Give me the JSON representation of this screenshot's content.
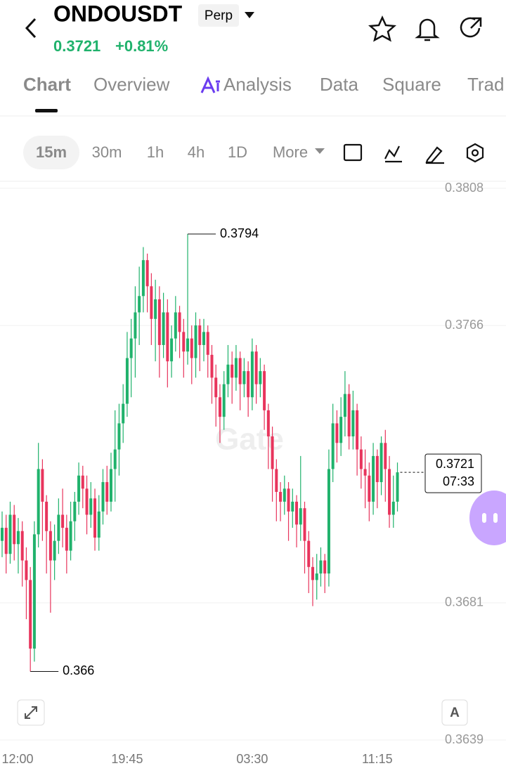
{
  "header": {
    "symbol": "ONDOUSDT",
    "badge": "Perp",
    "price": "0.3721",
    "change": "+0.81%"
  },
  "tabs": [
    "Chart",
    "Overview",
    "Analysis",
    "Data",
    "Square",
    "Trad"
  ],
  "intervals": [
    "15m",
    "30m",
    "1h",
    "4h",
    "1D",
    "More"
  ],
  "watermark": "Gate",
  "auto_button": "A",
  "chart_data": {
    "type": "candlestick",
    "categories": [
      "12:00",
      null,
      null,
      null,
      null,
      null,
      null,
      null,
      null,
      null,
      null,
      null,
      null,
      null,
      null,
      null,
      null,
      null,
      null,
      null,
      null,
      null,
      null,
      null,
      null,
      null,
      null,
      null,
      null,
      null,
      null,
      "19:45",
      null,
      null,
      null,
      null,
      null,
      null,
      null,
      null,
      null,
      null,
      null,
      null,
      null,
      null,
      null,
      null,
      null,
      null,
      null,
      null,
      null,
      null,
      null,
      null,
      null,
      null,
      null,
      null,
      null,
      null,
      "03:30",
      null,
      null,
      null,
      null,
      null,
      null,
      null,
      null,
      null,
      null,
      null,
      null,
      null,
      null,
      null,
      null,
      null,
      null,
      null,
      null,
      null,
      null,
      null,
      null,
      null,
      null,
      null,
      null,
      null,
      null,
      "11:15",
      null,
      null,
      null,
      null,
      null
    ],
    "open": [
      0.37,
      0.3704,
      0.3696,
      0.3708,
      0.3699,
      0.3703,
      0.3694,
      0.3688,
      0.3667,
      0.3702,
      0.3722,
      0.3712,
      0.3703,
      0.3694,
      0.37,
      0.3708,
      0.3704,
      0.3697,
      0.3706,
      0.3712,
      0.372,
      0.3716,
      0.3708,
      0.3713,
      0.3701,
      0.3709,
      0.3718,
      0.3712,
      0.3722,
      0.3728,
      0.3736,
      0.3742,
      0.3756,
      0.3762,
      0.377,
      0.3775,
      0.3786,
      0.3778,
      0.3768,
      0.3774,
      0.376,
      0.377,
      0.3755,
      0.3762,
      0.377,
      0.3764,
      0.3758,
      0.3762,
      0.3756,
      0.3766,
      0.376,
      0.3764,
      0.3757,
      0.375,
      0.3744,
      0.3738,
      0.3748,
      0.3754,
      0.375,
      0.3756,
      0.3748,
      0.3752,
      0.3744,
      0.3758,
      0.3748,
      0.3752,
      0.374,
      0.3732,
      0.3722,
      0.3715,
      0.3712,
      0.3716,
      0.3709,
      0.3712,
      0.3705,
      0.371,
      0.37,
      0.3692,
      0.3688,
      0.369,
      0.3694,
      0.369,
      0.3722,
      0.3736,
      0.373,
      0.3738,
      0.3745,
      0.3732,
      0.374,
      0.3728,
      0.3722,
      0.372,
      0.3712,
      0.3726,
      0.3718,
      0.373,
      0.3722,
      0.3708,
      0.3712
    ],
    "high": [
      0.3709,
      0.3708,
      0.3712,
      0.3711,
      0.3707,
      0.3706,
      0.3698,
      0.3692,
      0.3706,
      0.373,
      0.3725,
      0.3714,
      0.3706,
      0.3705,
      0.3713,
      0.3716,
      0.3708,
      0.3712,
      0.3715,
      0.3724,
      0.3723,
      0.372,
      0.3718,
      0.3716,
      0.3714,
      0.3722,
      0.3723,
      0.3727,
      0.374,
      0.3742,
      0.3748,
      0.3764,
      0.3768,
      0.3778,
      0.3784,
      0.379,
      0.3788,
      0.3782,
      0.378,
      0.3778,
      0.3776,
      0.3774,
      0.3766,
      0.3775,
      0.3772,
      0.3768,
      0.3794,
      0.3766,
      0.377,
      0.3768,
      0.3768,
      0.3766,
      0.376,
      0.3754,
      0.3748,
      0.3752,
      0.376,
      0.3758,
      0.376,
      0.3758,
      0.3756,
      0.3755,
      0.3762,
      0.376,
      0.3756,
      0.3754,
      0.3742,
      0.3735,
      0.3725,
      0.3718,
      0.372,
      0.3718,
      0.3716,
      0.3714,
      0.3726,
      0.3712,
      0.3703,
      0.3695,
      0.3696,
      0.3698,
      0.3696,
      0.3728,
      0.3742,
      0.374,
      0.3744,
      0.3752,
      0.3748,
      0.3746,
      0.3742,
      0.3732,
      0.3728,
      0.3724,
      0.373,
      0.3728,
      0.3732,
      0.3734,
      0.3726,
      0.372,
      0.3724
    ],
    "low": [
      0.3695,
      0.369,
      0.3693,
      0.3694,
      0.369,
      0.3686,
      0.3676,
      0.366,
      0.3663,
      0.3698,
      0.37,
      0.369,
      0.3678,
      0.3688,
      0.3696,
      0.3698,
      0.369,
      0.3694,
      0.37,
      0.3708,
      0.371,
      0.3702,
      0.3704,
      0.3697,
      0.3697,
      0.3705,
      0.3708,
      0.3709,
      0.3712,
      0.372,
      0.373,
      0.3738,
      0.3744,
      0.375,
      0.376,
      0.377,
      0.377,
      0.376,
      0.3755,
      0.375,
      0.3756,
      0.3747,
      0.375,
      0.3758,
      0.3756,
      0.375,
      0.3754,
      0.3748,
      0.375,
      0.3752,
      0.3755,
      0.375,
      0.3742,
      0.3735,
      0.373,
      0.3734,
      0.3744,
      0.3742,
      0.3746,
      0.374,
      0.3744,
      0.3738,
      0.374,
      0.3742,
      0.3744,
      0.3734,
      0.3722,
      0.3712,
      0.3706,
      0.3706,
      0.3708,
      0.37,
      0.3704,
      0.3698,
      0.37,
      0.369,
      0.3684,
      0.368,
      0.3682,
      0.3686,
      0.3684,
      0.3686,
      0.3718,
      0.3724,
      0.3726,
      0.3732,
      0.3728,
      0.3728,
      0.372,
      0.3716,
      0.371,
      0.3706,
      0.3708,
      0.371,
      0.3714,
      0.3712,
      0.3704,
      0.3704,
      0.3709
    ],
    "close": [
      0.3704,
      0.3696,
      0.3708,
      0.3699,
      0.3703,
      0.3694,
      0.3688,
      0.3667,
      0.3702,
      0.3722,
      0.3712,
      0.3703,
      0.3694,
      0.37,
      0.3708,
      0.3704,
      0.3697,
      0.3706,
      0.3712,
      0.372,
      0.3716,
      0.3708,
      0.3713,
      0.3701,
      0.3709,
      0.3718,
      0.3712,
      0.3722,
      0.3728,
      0.3736,
      0.3742,
      0.3756,
      0.3762,
      0.377,
      0.3775,
      0.3786,
      0.3778,
      0.3768,
      0.3774,
      0.376,
      0.377,
      0.3755,
      0.3762,
      0.377,
      0.3764,
      0.3758,
      0.3762,
      0.3756,
      0.3766,
      0.376,
      0.3764,
      0.3757,
      0.375,
      0.3744,
      0.3738,
      0.3748,
      0.3754,
      0.375,
      0.3756,
      0.3748,
      0.3752,
      0.3744,
      0.3758,
      0.3748,
      0.3752,
      0.374,
      0.3732,
      0.3722,
      0.3715,
      0.3712,
      0.3716,
      0.3709,
      0.3712,
      0.3705,
      0.371,
      0.37,
      0.3692,
      0.3688,
      0.369,
      0.3694,
      0.369,
      0.3722,
      0.3736,
      0.373,
      0.3738,
      0.3745,
      0.3732,
      0.374,
      0.3728,
      0.3722,
      0.372,
      0.3712,
      0.3726,
      0.3718,
      0.373,
      0.3722,
      0.3708,
      0.3712,
      0.3721
    ],
    "up_color": "#20b26c",
    "down_color": "#e8345c",
    "ylim": [
      0.3639,
      0.3808
    ],
    "yticks": [
      0.3639,
      0.3681,
      0.3766,
      0.3808
    ],
    "grid": true,
    "countdown": "07:33"
  }
}
